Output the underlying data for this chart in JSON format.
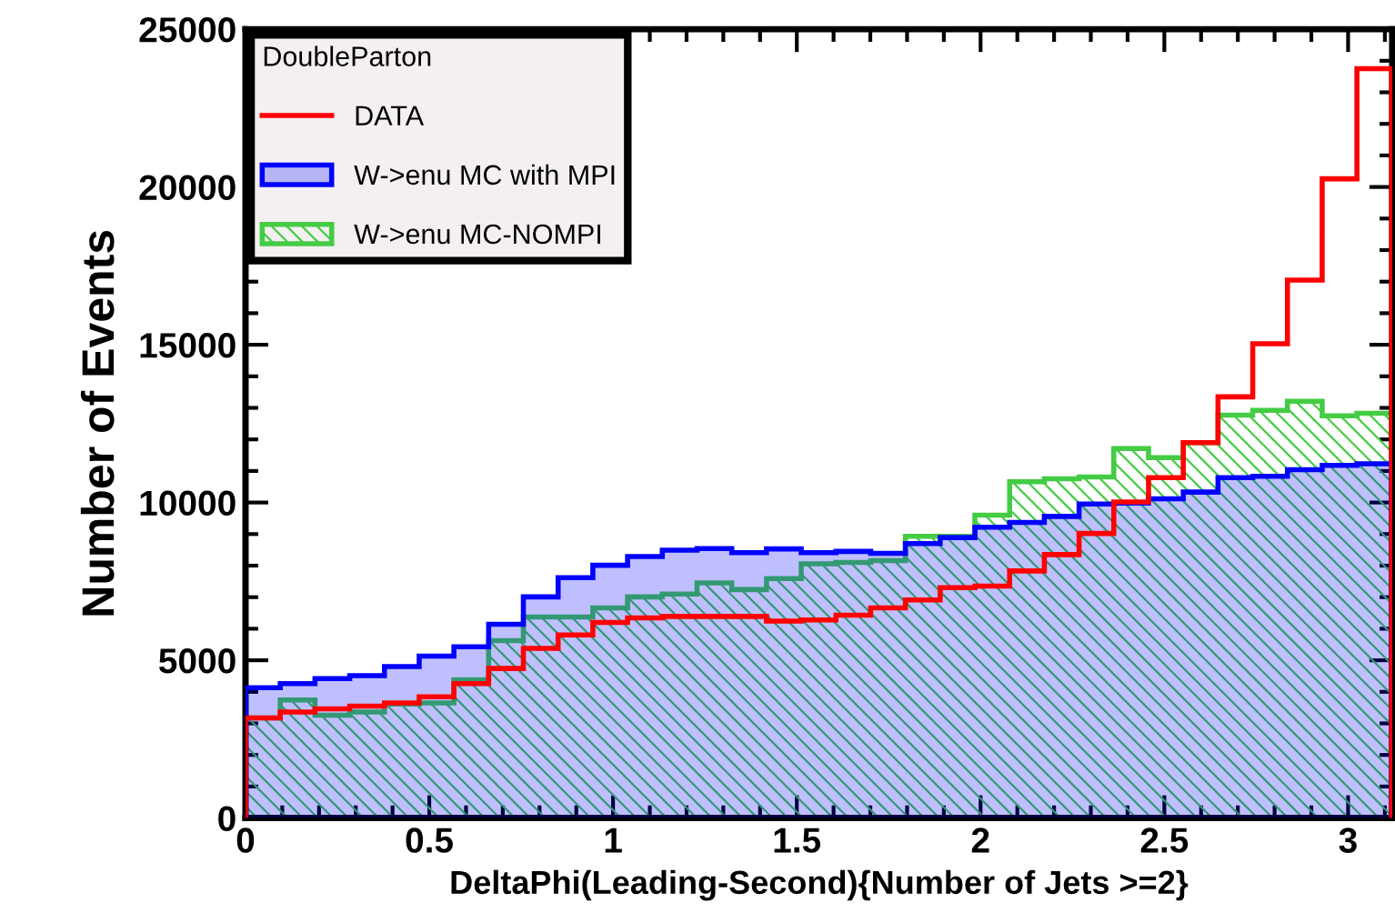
{
  "chart_data": {
    "type": "histogram",
    "xlabel": "DeltaPhi(Leading-Second){Number of Jets >=2}",
    "ylabel": "Number of Events",
    "legend_title": "DoubleParton",
    "legend": "top left",
    "bins": [
      0,
      0.0945,
      0.189,
      0.2835,
      0.378,
      0.4725,
      0.567,
      0.6615,
      0.756,
      0.8505,
      0.945,
      1.0395,
      1.134,
      1.2285,
      1.323,
      1.4175,
      1.512,
      1.6065,
      1.701,
      1.7955,
      1.89,
      1.9845,
      2.079,
      2.1735,
      2.268,
      2.3625,
      2.457,
      2.5515,
      2.646,
      2.7405,
      2.835,
      2.9295,
      3.024,
      3.1185
    ],
    "series": [
      {
        "name": "DATA",
        "color": "#ff0000",
        "values": [
          3170,
          3360,
          3460,
          3550,
          3650,
          3840,
          4260,
          4740,
          5380,
          5800,
          6200,
          6340,
          6390,
          6390,
          6390,
          6240,
          6280,
          6430,
          6660,
          6910,
          7300,
          7350,
          7830,
          8350,
          9020,
          10020,
          10790,
          11900,
          13350,
          15030,
          17050,
          20260,
          23750
        ]
      },
      {
        "name": "W->enu MC with MPI",
        "color": "#0000ff",
        "values": [
          4130,
          4260,
          4420,
          4510,
          4800,
          5130,
          5430,
          6140,
          7010,
          7620,
          8010,
          8290,
          8490,
          8540,
          8410,
          8530,
          8410,
          8450,
          8390,
          8700,
          8890,
          9220,
          9370,
          9560,
          9950,
          9980,
          10120,
          10330,
          10790,
          10830,
          11040,
          11180,
          11230
        ]
      },
      {
        "name": "W->enu MC-NOMPI",
        "color": "#44cc44",
        "values": [
          3170,
          3740,
          3260,
          3360,
          3610,
          3650,
          4380,
          5620,
          6370,
          6370,
          6660,
          7010,
          7100,
          7450,
          7240,
          7590,
          8060,
          8100,
          8160,
          8930,
          8930,
          9600,
          10660,
          10750,
          10810,
          11710,
          11420,
          11900,
          12770,
          12920,
          13210,
          12750,
          12830
        ]
      }
    ],
    "xlim": [
      0,
      3.12
    ],
    "ylim": [
      0,
      25000
    ],
    "xticks": [
      0,
      0.5,
      1,
      1.5,
      2,
      2.5,
      3
    ],
    "yticks": [
      0,
      5000,
      10000,
      15000,
      20000,
      25000
    ],
    "grid": false
  }
}
